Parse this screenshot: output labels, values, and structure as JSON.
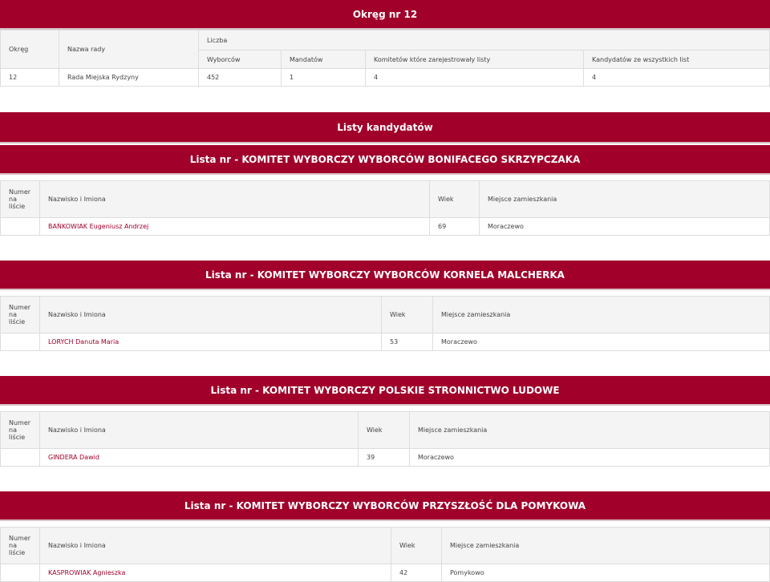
{
  "district": {
    "title": "Okręg nr 12",
    "headers": {
      "okreg": "Okręg",
      "nazwa": "Nazwa rady",
      "liczba": "Liczba",
      "wyborcow": "Wyborców",
      "mandatow": "Mandatów",
      "komitetow": "Komitetów które zarejestrowały listy",
      "kandydatow": "Kandydatów ze wszystkich list"
    },
    "row": {
      "okreg": "12",
      "nazwa": "Rada Miejska Rydzyny",
      "wyborcow": "452",
      "mandatow": "1",
      "komitetow": "4",
      "kandydatow": "4"
    }
  },
  "lists_title": "Listy kandydatów",
  "list_headers": {
    "numer": "Numer na liście",
    "nazwisko": "Nazwisko i Imiona",
    "wiek": "Wiek",
    "miejsce": "Miejsce zamieszkania"
  },
  "lists": [
    {
      "title": "Lista nr - KOMITET WYBORCZY WYBORCÓW BONIFACEGO SKRZYPCZAKA",
      "candidate": {
        "numer": "",
        "name": "BAŃKOWIAK Eugeniusz Andrzej",
        "age": "69",
        "place": "Moraczewo"
      }
    },
    {
      "title": "Lista nr - KOMITET WYBORCZY WYBORCÓW KORNELA MALCHERKA",
      "candidate": {
        "numer": "",
        "name": "LORYCH Danuta Maria",
        "age": "53",
        "place": "Moraczewo"
      }
    },
    {
      "title": "Lista nr - KOMITET WYBORCZY POLSKIE STRONNICTWO LUDOWE",
      "candidate": {
        "numer": "",
        "name": "GINDERA Dawid",
        "age": "39",
        "place": "Moraczewo"
      }
    },
    {
      "title": "Lista nr - KOMITET WYBORCZY WYBORCÓW PRZYSZŁOŚĆ DLA POMYKOWA",
      "candidate": {
        "numer": "",
        "name": "KASPROWIAK Agnieszka",
        "age": "42",
        "place": "Pomykowo"
      }
    }
  ],
  "colors": {
    "accent": "#a0002a"
  }
}
